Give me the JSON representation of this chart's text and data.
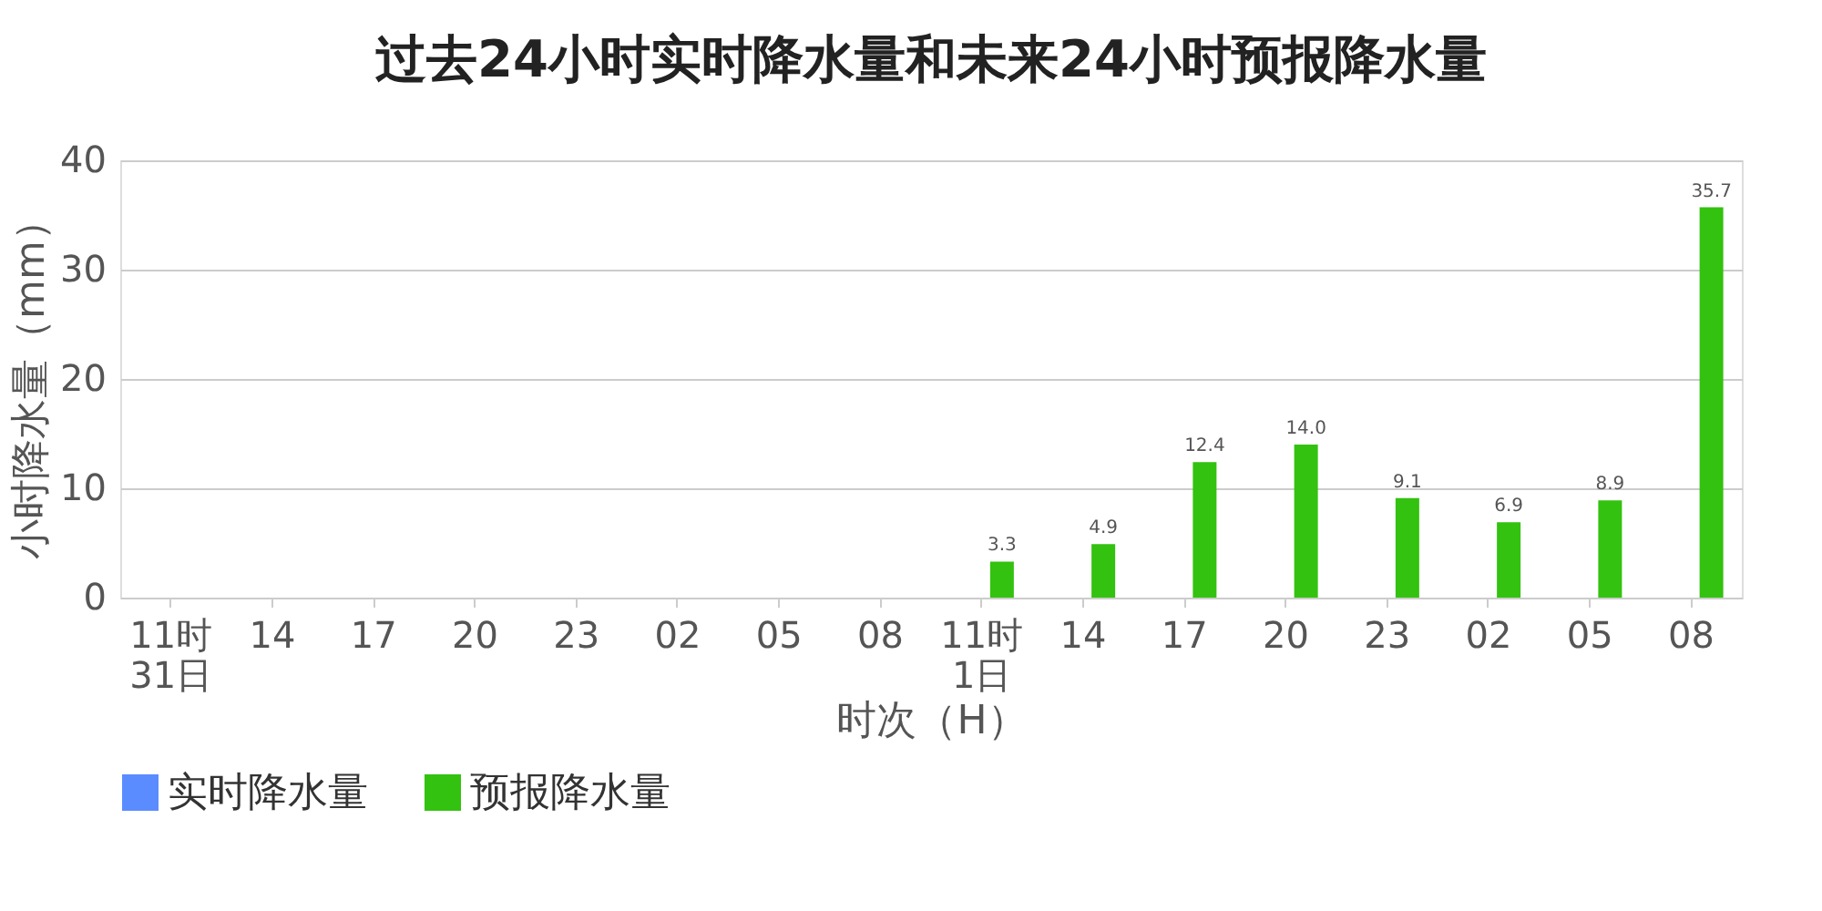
{
  "chart_data": {
    "type": "bar",
    "title": "过去24小时实时降水量和未来24小时预报降水量",
    "xlabel": "时次（H）",
    "ylabel": "小时降水量（mm）",
    "categories": [
      "11时\n31日",
      "14",
      "17",
      "20",
      "23",
      "02",
      "05",
      "08",
      "11时\n1日",
      "14",
      "17",
      "20",
      "23",
      "02",
      "05",
      "08"
    ],
    "series": [
      {
        "name": "实时降水量",
        "color": "#5b8cff",
        "values": [
          null,
          null,
          null,
          null,
          null,
          null,
          null,
          null,
          null,
          null,
          null,
          null,
          null,
          null,
          null,
          null
        ]
      },
      {
        "name": "预报降水量",
        "color": "#33c20f",
        "values": [
          null,
          null,
          null,
          null,
          null,
          null,
          null,
          null,
          3.3,
          4.9,
          12.4,
          14.0,
          9.1,
          6.9,
          8.9,
          35.7
        ],
        "value_labels": [
          null,
          null,
          null,
          null,
          null,
          null,
          null,
          null,
          "3.3",
          "4.9",
          "12.4",
          "14.0",
          "9.1",
          "6.9",
          "8.9",
          "35.7"
        ]
      }
    ],
    "ylim": [
      0,
      40
    ],
    "yticks": [
      0,
      10,
      20,
      30,
      40
    ],
    "grid": "y",
    "legend": "bottom"
  }
}
